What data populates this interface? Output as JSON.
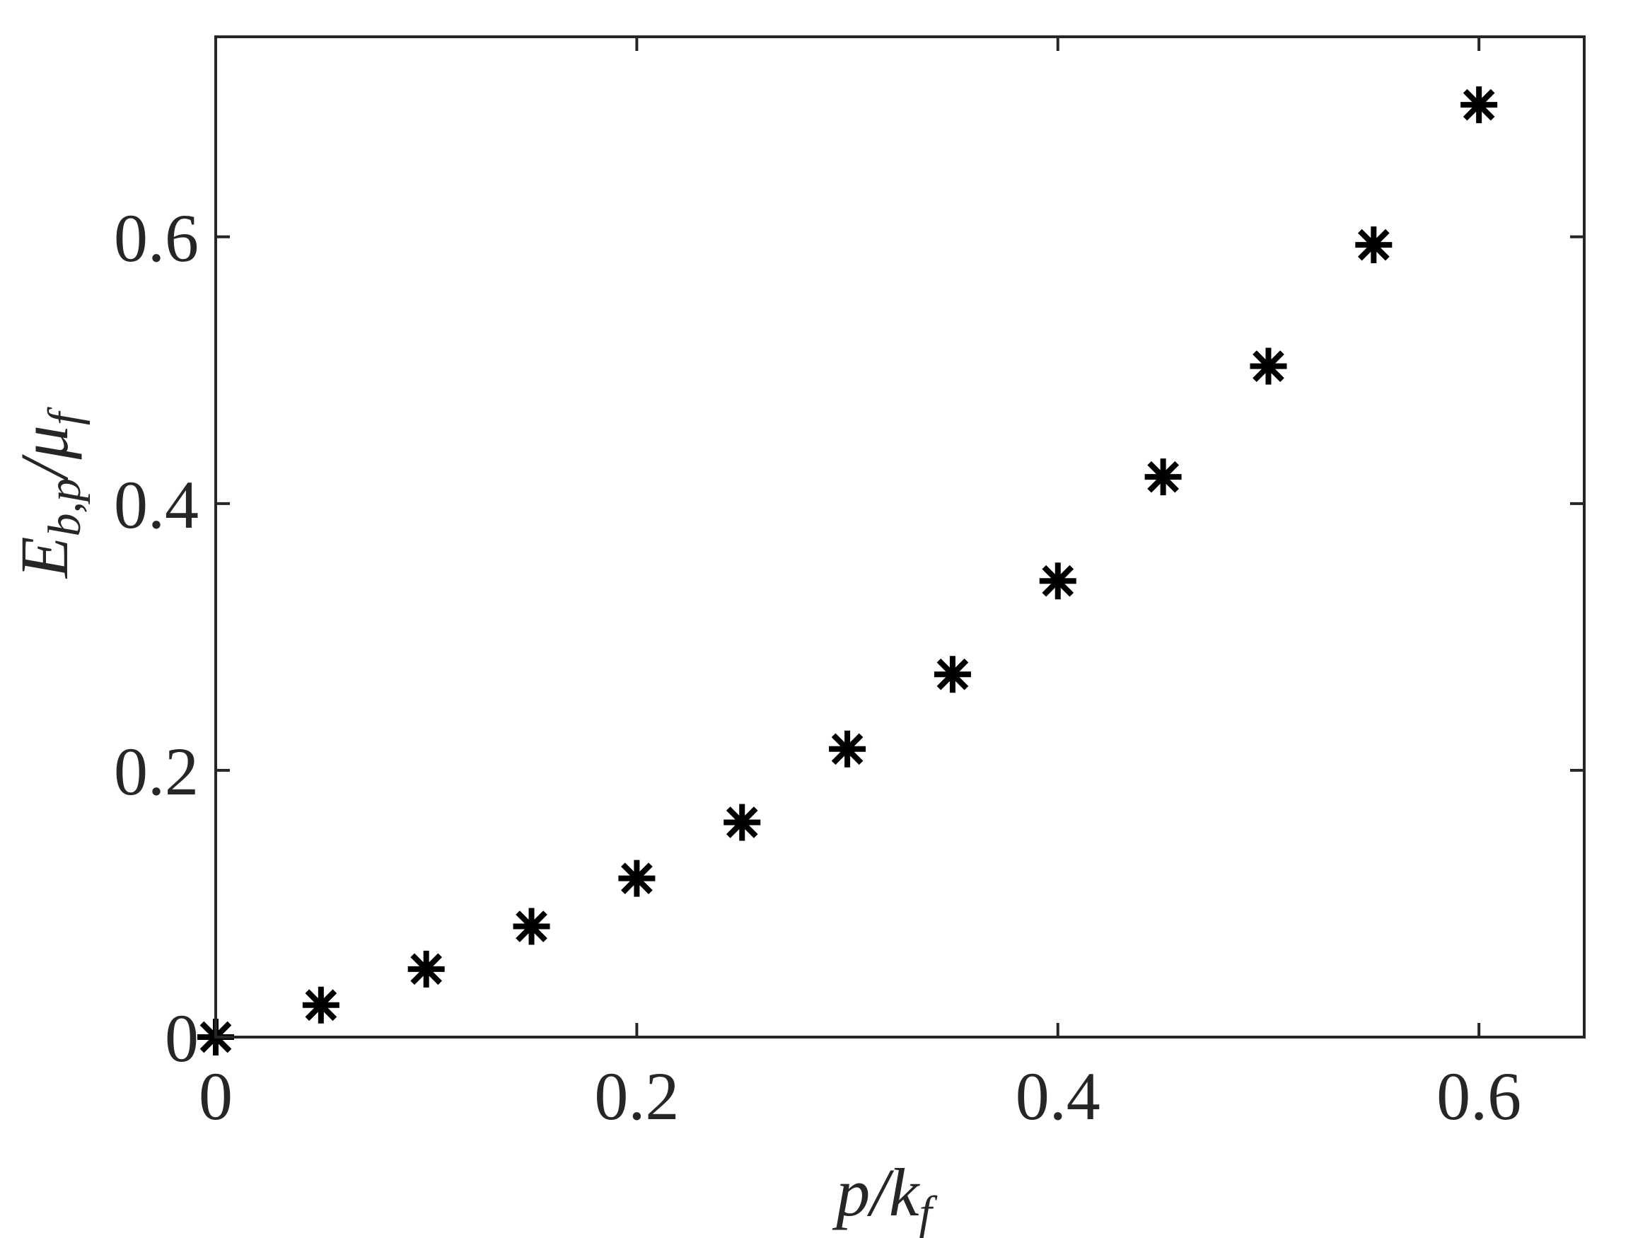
{
  "chart_data": {
    "type": "scatter",
    "title": "",
    "xlabel": {
      "base": "p/k",
      "sub": "f"
    },
    "ylabel": {
      "base": "E",
      "sub1": "b,p",
      "mid": "/μ",
      "sub2": "f"
    },
    "xlim": [
      0,
      0.65
    ],
    "ylim": [
      0,
      0.75
    ],
    "xticks": [
      0,
      0.2,
      0.4,
      0.6
    ],
    "xtick_labels": [
      "0",
      "0.2",
      "0.4",
      "0.6"
    ],
    "yticks": [
      0,
      0.2,
      0.4,
      0.6
    ],
    "ytick_labels": [
      "0",
      "0.2",
      "0.4",
      "0.6"
    ],
    "grid": false,
    "marker": "asterisk",
    "marker_color": "#000000",
    "axis_color": "#262626",
    "series": [
      {
        "x": [
          0,
          0.05,
          0.1,
          0.15,
          0.2,
          0.25,
          0.3,
          0.35,
          0.4,
          0.45,
          0.5,
          0.55,
          0.6
        ],
        "values": [
          0.0,
          0.024,
          0.051,
          0.083,
          0.119,
          0.161,
          0.216,
          0.272,
          0.342,
          0.42,
          0.503,
          0.594,
          0.699
        ]
      }
    ]
  }
}
